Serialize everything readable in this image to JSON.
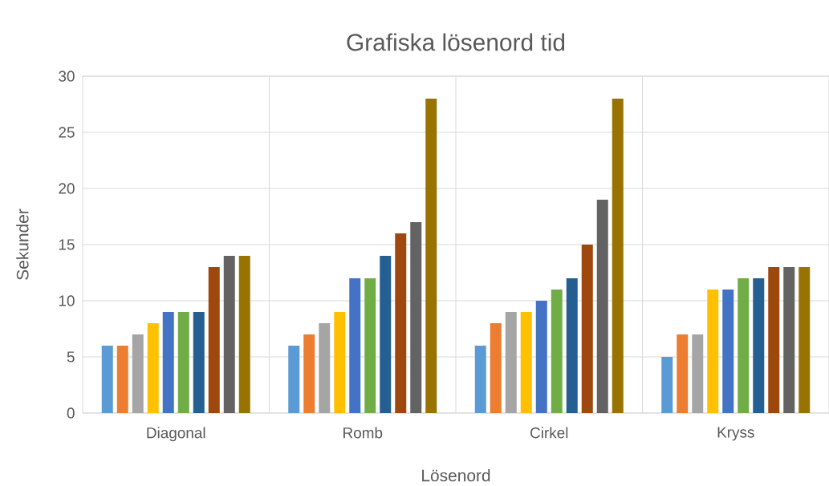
{
  "chart_data": {
    "type": "bar",
    "title": "Grafiska lösenord tid",
    "xlabel": "Lösenord",
    "ylabel": "Sekunder",
    "categories": [
      "Diagonal",
      "Romb",
      "Cirkel",
      "Kryss"
    ],
    "series": [
      {
        "color": "#5b9bd5",
        "values": [
          6,
          6,
          6,
          5
        ]
      },
      {
        "color": "#ed7d31",
        "values": [
          6,
          7,
          8,
          7
        ]
      },
      {
        "color": "#a5a5a5",
        "values": [
          7,
          8,
          9,
          7
        ]
      },
      {
        "color": "#ffc000",
        "values": [
          8,
          9,
          9,
          11
        ]
      },
      {
        "color": "#4472c4",
        "values": [
          9,
          12,
          10,
          11
        ]
      },
      {
        "color": "#70ad47",
        "values": [
          9,
          12,
          11,
          12
        ]
      },
      {
        "color": "#255e91",
        "values": [
          9,
          14,
          12,
          12
        ]
      },
      {
        "color": "#9e480e",
        "values": [
          13,
          16,
          15,
          13
        ]
      },
      {
        "color": "#636363",
        "values": [
          14,
          17,
          19,
          13
        ]
      },
      {
        "color": "#997300",
        "values": [
          14,
          28,
          28,
          13
        ]
      }
    ],
    "ylim": [
      0,
      30
    ],
    "yticks": [
      0,
      5,
      10,
      15,
      20,
      25,
      30
    ],
    "grid": true
  }
}
